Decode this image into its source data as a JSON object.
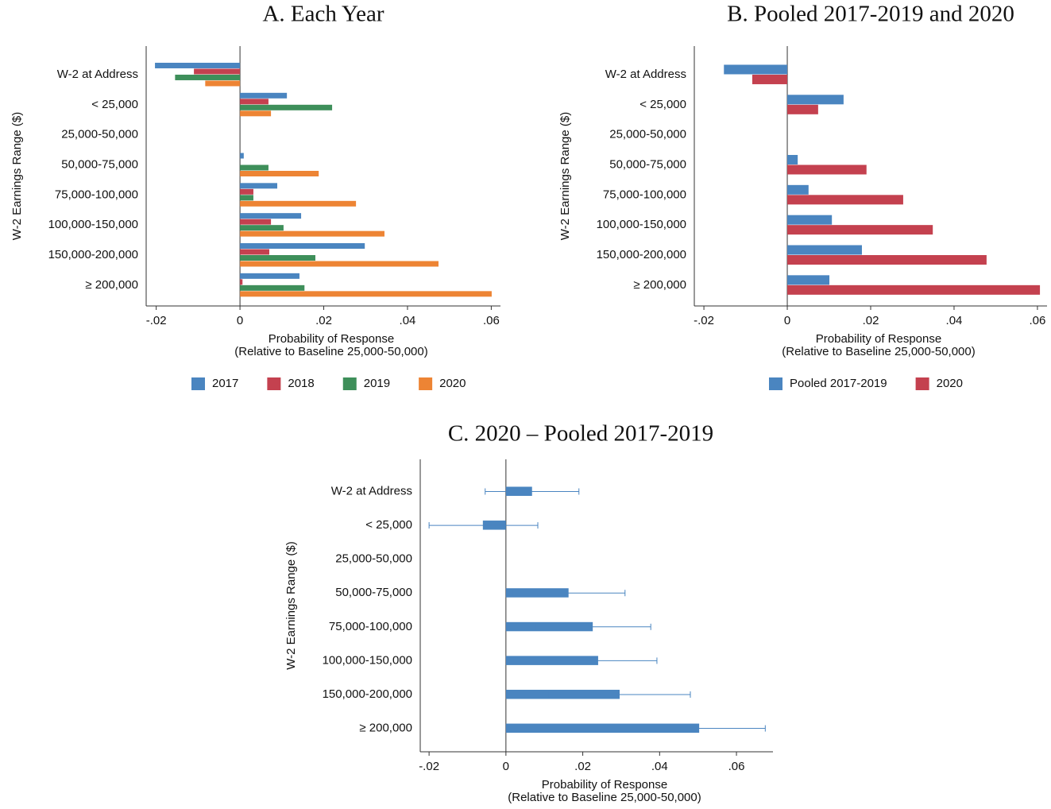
{
  "chart_data": [
    {
      "type": "bar",
      "orientation": "horizontal",
      "title": "A. Each Year",
      "ylabel": "W-2 Earnings Range ($)",
      "xlabel": [
        "Probability of Response",
        "(Relative to Baseline 25,000-50,000)"
      ],
      "categories": [
        "W-2 at Address",
        "< 25,000",
        "25,000-50,000",
        "50,000-75,000",
        "75,000-100,000",
        "100,000-150,000",
        "150,000-200,000",
        "≥ 200,000"
      ],
      "series": [
        {
          "name": "2017",
          "color": "#4a85c0",
          "values": [
            -0.0203,
            0.0112,
            0,
            0.0009,
            0.0089,
            0.0146,
            0.0298,
            0.0142
          ]
        },
        {
          "name": "2018",
          "color": "#c4414f",
          "values": [
            -0.011,
            0.0068,
            0,
            0,
            0.0032,
            0.0074,
            0.007,
            0.0006
          ]
        },
        {
          "name": "2019",
          "color": "#3e8f5a",
          "values": [
            -0.0155,
            0.022,
            0,
            0.0068,
            0.0032,
            0.0104,
            0.018,
            0.0154
          ]
        },
        {
          "name": "2020",
          "color": "#ed8434",
          "values": [
            -0.0083,
            0.0074,
            0,
            0.0188,
            0.0277,
            0.0345,
            0.0474,
            0.0601
          ]
        }
      ],
      "xlim": [
        -0.0224,
        0.0622
      ],
      "xticks": [
        {
          "value": -0.02,
          "label": "-.02"
        },
        0,
        {
          "value": 0.02,
          "label": ".02"
        },
        {
          "value": 0.04,
          "label": ".04"
        },
        {
          "value": 0.06,
          "label": ".06"
        }
      ],
      "legend": "bottom"
    },
    {
      "type": "bar",
      "orientation": "horizontal",
      "title": "B. Pooled 2017-2019 and 2020",
      "ylabel": "W-2 Earnings Range ($)",
      "xlabel": [
        "Probability of Response",
        "(Relative to Baseline 25,000-50,000)"
      ],
      "categories": [
        "W-2 at Address",
        "< 25,000",
        "25,000-50,000",
        "50,000-75,000",
        "75,000-100,000",
        "100,000-150,000",
        "150,000-200,000",
        "≥ 200,000"
      ],
      "series": [
        {
          "name": "Pooled 2017-2019",
          "color": "#4a85c0",
          "values": [
            -0.0152,
            0.0135,
            0,
            0.0025,
            0.0051,
            0.0107,
            0.0179,
            0.0101
          ]
        },
        {
          "name": "2020",
          "color": "#c4414f",
          "values": [
            -0.0084,
            0.0074,
            0,
            0.019,
            0.0278,
            0.0349,
            0.0478,
            0.0606
          ]
        }
      ],
      "xlim": [
        -0.0223,
        0.0623
      ],
      "xticks": [
        {
          "value": -0.02,
          "label": "-.02"
        },
        0,
        {
          "value": 0.02,
          "label": ".02"
        },
        {
          "value": 0.04,
          "label": ".04"
        },
        {
          "value": 0.06,
          "label": ".06"
        }
      ],
      "legend": "bottom"
    },
    {
      "type": "bar",
      "orientation": "horizontal",
      "title": "C. 2020 – Pooled 2017-2019",
      "ylabel": "W-2 Earnings Range ($)",
      "xlabel": [
        "Probability of Response",
        "(Relative to Baseline 25,000-50,000)"
      ],
      "categories": [
        "W-2 at Address",
        "< 25,000",
        "25,000-50,000",
        "50,000-75,000",
        "75,000-100,000",
        "100,000-150,000",
        "150,000-200,000",
        "≥ 200,000"
      ],
      "color": "#4a85c0",
      "values": [
        0.0068,
        -0.006,
        0,
        0.0163,
        0.0226,
        0.024,
        0.0296,
        0.0503
      ],
      "error_low": [
        -0.0054,
        -0.02,
        null,
        0.0019,
        0.0077,
        0.0087,
        0.0112,
        0.0327
      ],
      "error_high": [
        0.019,
        0.0083,
        null,
        0.031,
        0.0377,
        0.0393,
        0.048,
        0.0675
      ],
      "xlim": [
        -0.0223,
        0.0695
      ],
      "xticks": [
        {
          "value": -0.02,
          "label": "-.02"
        },
        0,
        {
          "value": 0.02,
          "label": ".02"
        },
        {
          "value": 0.04,
          "label": ".04"
        },
        {
          "value": 0.06,
          "label": ".06"
        }
      ]
    }
  ]
}
